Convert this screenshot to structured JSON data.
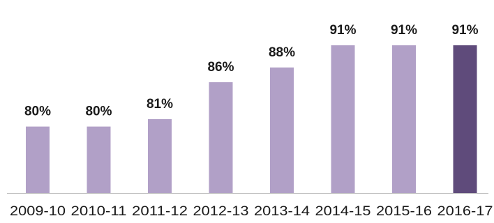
{
  "chart_data": {
    "type": "bar",
    "categories": [
      "2009-10",
      "2010-11",
      "2011-12",
      "2012-13",
      "2013-14",
      "2014-15",
      "2015-16",
      "2016-17"
    ],
    "values": [
      80,
      80,
      81,
      86,
      88,
      91,
      91,
      91
    ],
    "data_labels": [
      "80%",
      "80%",
      "81%",
      "86%",
      "88%",
      "91%",
      "91%",
      "91%"
    ],
    "highlight_index": 7,
    "ylim": [
      71,
      92
    ],
    "grid": false,
    "colors": {
      "bar": "#b1a0c7",
      "bar_highlight": "#5f4b7b",
      "axis": "#bfbfbf"
    }
  }
}
